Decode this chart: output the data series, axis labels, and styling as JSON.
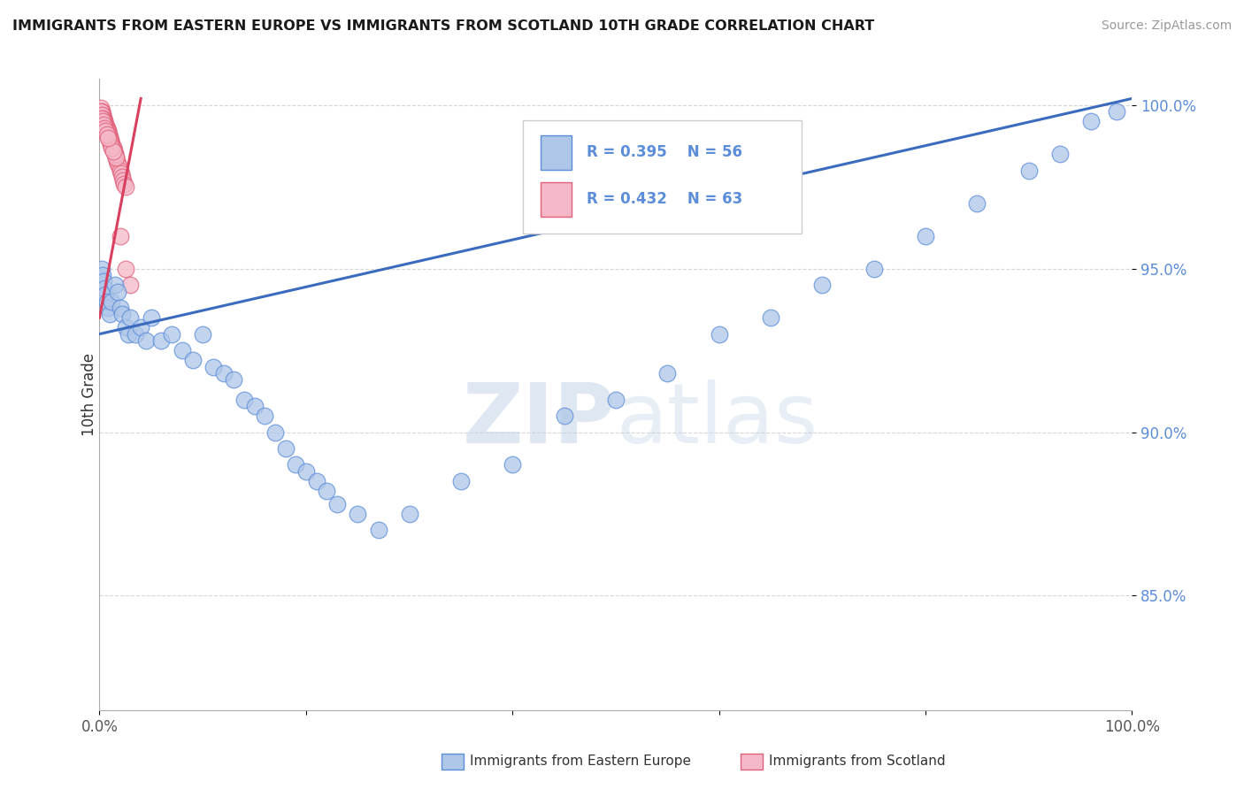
{
  "title": "IMMIGRANTS FROM EASTERN EUROPE VS IMMIGRANTS FROM SCOTLAND 10TH GRADE CORRELATION CHART",
  "source": "Source: ZipAtlas.com",
  "ylabel": "10th Grade",
  "watermark": "ZIPatlas",
  "blue_R": 0.395,
  "blue_N": 56,
  "pink_R": 0.432,
  "pink_N": 63,
  "legend_blue": "Immigrants from Eastern Europe",
  "legend_pink": "Immigrants from Scotland",
  "blue_color": "#aec6e8",
  "pink_color": "#f5b8c8",
  "blue_edge_color": "#5b8dd9",
  "pink_edge_color": "#e0607a",
  "blue_line_color": "#3a6bbf",
  "pink_line_color": "#d94060",
  "xlim": [
    0.0,
    1.0
  ],
  "ylim": [
    0.815,
    1.008
  ],
  "yticks": [
    0.85,
    0.9,
    0.95,
    1.0
  ],
  "ytick_labels": [
    "85.0%",
    "90.0%",
    "95.0%",
    "100.0%"
  ],
  "blue_trend_x": [
    0.0,
    1.0
  ],
  "blue_trend_y": [
    0.93,
    1.002
  ],
  "pink_trend_x": [
    0.0,
    0.04
  ],
  "pink_trend_y": [
    0.935,
    1.002
  ],
  "blue_x": [
    0.002,
    0.003,
    0.004,
    0.005,
    0.006,
    0.007,
    0.008,
    0.01,
    0.012,
    0.015,
    0.018,
    0.02,
    0.022,
    0.025,
    0.028,
    0.03,
    0.035,
    0.04,
    0.045,
    0.05,
    0.06,
    0.07,
    0.08,
    0.09,
    0.1,
    0.11,
    0.12,
    0.13,
    0.14,
    0.15,
    0.16,
    0.17,
    0.18,
    0.19,
    0.2,
    0.21,
    0.22,
    0.23,
    0.25,
    0.27,
    0.3,
    0.35,
    0.4,
    0.45,
    0.5,
    0.55,
    0.6,
    0.65,
    0.7,
    0.75,
    0.8,
    0.85,
    0.9,
    0.93,
    0.96,
    0.985
  ],
  "blue_y": [
    0.95,
    0.948,
    0.946,
    0.944,
    0.942,
    0.94,
    0.938,
    0.936,
    0.94,
    0.945,
    0.943,
    0.938,
    0.936,
    0.932,
    0.93,
    0.935,
    0.93,
    0.932,
    0.928,
    0.935,
    0.928,
    0.93,
    0.925,
    0.922,
    0.93,
    0.92,
    0.918,
    0.916,
    0.91,
    0.908,
    0.905,
    0.9,
    0.895,
    0.89,
    0.888,
    0.885,
    0.882,
    0.878,
    0.875,
    0.87,
    0.875,
    0.885,
    0.89,
    0.905,
    0.91,
    0.918,
    0.93,
    0.935,
    0.945,
    0.95,
    0.96,
    0.97,
    0.98,
    0.985,
    0.995,
    0.998
  ],
  "pink_x": [
    0.002,
    0.003,
    0.004,
    0.005,
    0.006,
    0.007,
    0.008,
    0.009,
    0.01,
    0.011,
    0.012,
    0.013,
    0.014,
    0.015,
    0.016,
    0.017,
    0.018,
    0.019,
    0.02,
    0.021,
    0.022,
    0.023,
    0.024,
    0.025,
    0.001,
    0.002,
    0.003,
    0.004,
    0.005,
    0.006,
    0.007,
    0.008,
    0.009,
    0.01,
    0.011,
    0.012,
    0.013,
    0.014,
    0.015,
    0.016,
    0.001,
    0.002,
    0.003,
    0.004,
    0.005,
    0.006,
    0.007,
    0.008,
    0.009,
    0.01,
    0.011,
    0.012,
    0.013,
    0.002,
    0.003,
    0.004,
    0.005,
    0.006,
    0.007,
    0.008,
    0.02,
    0.025,
    0.03
  ],
  "pink_y": [
    0.998,
    0.997,
    0.996,
    0.995,
    0.994,
    0.993,
    0.992,
    0.991,
    0.99,
    0.989,
    0.988,
    0.987,
    0.986,
    0.985,
    0.984,
    0.983,
    0.982,
    0.981,
    0.98,
    0.979,
    0.978,
    0.977,
    0.976,
    0.975,
    0.999,
    0.998,
    0.997,
    0.996,
    0.995,
    0.994,
    0.993,
    0.992,
    0.991,
    0.99,
    0.989,
    0.988,
    0.987,
    0.986,
    0.985,
    0.984,
    0.998,
    0.997,
    0.996,
    0.995,
    0.994,
    0.993,
    0.992,
    0.991,
    0.99,
    0.989,
    0.988,
    0.987,
    0.986,
    0.996,
    0.995,
    0.994,
    0.993,
    0.992,
    0.991,
    0.99,
    0.96,
    0.95,
    0.945
  ]
}
